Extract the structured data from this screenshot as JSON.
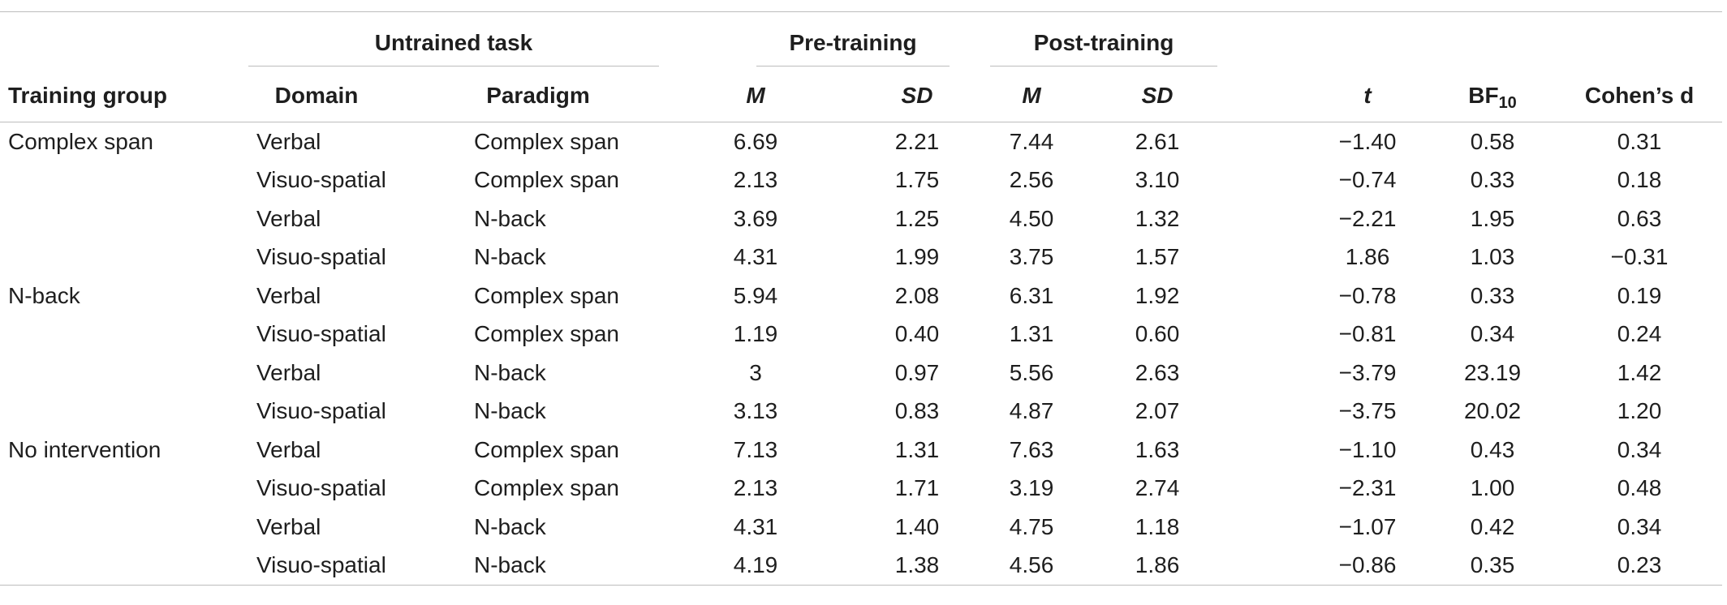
{
  "header": {
    "group_untrained": "Untrained task",
    "group_pre": "Pre-training",
    "group_post": "Post-training",
    "col_training_group": "Training group",
    "col_domain": "Domain",
    "col_paradigm": "Paradigm",
    "col_pre_m": "M",
    "col_pre_sd": "SD",
    "col_post_m": "M",
    "col_post_sd": "SD",
    "col_t": "t",
    "col_bf_main": "BF",
    "col_bf_sub": "10",
    "col_cohens_d": "Cohen’s d"
  },
  "rows": [
    {
      "group": "Complex span",
      "domain": "Verbal",
      "paradigm": "Complex span",
      "pre_m": "6.69",
      "pre_sd": "2.21",
      "post_m": "7.44",
      "post_sd": "2.61",
      "t": "−1.40",
      "bf10": "0.58",
      "d": "0.31"
    },
    {
      "group": "",
      "domain": "Visuo-spatial",
      "paradigm": "Complex span",
      "pre_m": "2.13",
      "pre_sd": "1.75",
      "post_m": "2.56",
      "post_sd": "3.10",
      "t": "−0.74",
      "bf10": "0.33",
      "d": "0.18"
    },
    {
      "group": "",
      "domain": "Verbal",
      "paradigm": "N-back",
      "pre_m": "3.69",
      "pre_sd": "1.25",
      "post_m": "4.50",
      "post_sd": "1.32",
      "t": "−2.21",
      "bf10": "1.95",
      "d": "0.63"
    },
    {
      "group": "",
      "domain": "Visuo-spatial",
      "paradigm": "N-back",
      "pre_m": "4.31",
      "pre_sd": "1.99",
      "post_m": "3.75",
      "post_sd": "1.57",
      "t": "1.86",
      "bf10": "1.03",
      "d": "−0.31"
    },
    {
      "group": "N-back",
      "domain": "Verbal",
      "paradigm": "Complex span",
      "pre_m": "5.94",
      "pre_sd": "2.08",
      "post_m": "6.31",
      "post_sd": "1.92",
      "t": "−0.78",
      "bf10": "0.33",
      "d": "0.19"
    },
    {
      "group": "",
      "domain": "Visuo-spatial",
      "paradigm": "Complex span",
      "pre_m": "1.19",
      "pre_sd": "0.40",
      "post_m": "1.31",
      "post_sd": "0.60",
      "t": "−0.81",
      "bf10": "0.34",
      "d": "0.24"
    },
    {
      "group": "",
      "domain": "Verbal",
      "paradigm": "N-back",
      "pre_m": "3",
      "pre_sd": "0.97",
      "post_m": "5.56",
      "post_sd": "2.63",
      "t": "−3.79",
      "bf10": "23.19",
      "d": "1.42"
    },
    {
      "group": "",
      "domain": "Visuo-spatial",
      "paradigm": "N-back",
      "pre_m": "3.13",
      "pre_sd": "0.83",
      "post_m": "4.87",
      "post_sd": "2.07",
      "t": "−3.75",
      "bf10": "20.02",
      "d": "1.20"
    },
    {
      "group": "No intervention",
      "domain": "Verbal",
      "paradigm": "Complex span",
      "pre_m": "7.13",
      "pre_sd": "1.31",
      "post_m": "7.63",
      "post_sd": "1.63",
      "t": "−1.10",
      "bf10": "0.43",
      "d": "0.34"
    },
    {
      "group": "",
      "domain": "Visuo-spatial",
      "paradigm": "Complex span",
      "pre_m": "2.13",
      "pre_sd": "1.71",
      "post_m": "3.19",
      "post_sd": "2.74",
      "t": "−2.31",
      "bf10": "1.00",
      "d": "0.48"
    },
    {
      "group": "",
      "domain": "Verbal",
      "paradigm": "N-back",
      "pre_m": "4.31",
      "pre_sd": "1.40",
      "post_m": "4.75",
      "post_sd": "1.18",
      "t": "−1.07",
      "bf10": "0.42",
      "d": "0.34"
    },
    {
      "group": "",
      "domain": "Visuo-spatial",
      "paradigm": "N-back",
      "pre_m": "4.19",
      "pre_sd": "1.38",
      "post_m": "4.56",
      "post_sd": "1.86",
      "t": "−0.86",
      "bf10": "0.35",
      "d": "0.23"
    }
  ]
}
